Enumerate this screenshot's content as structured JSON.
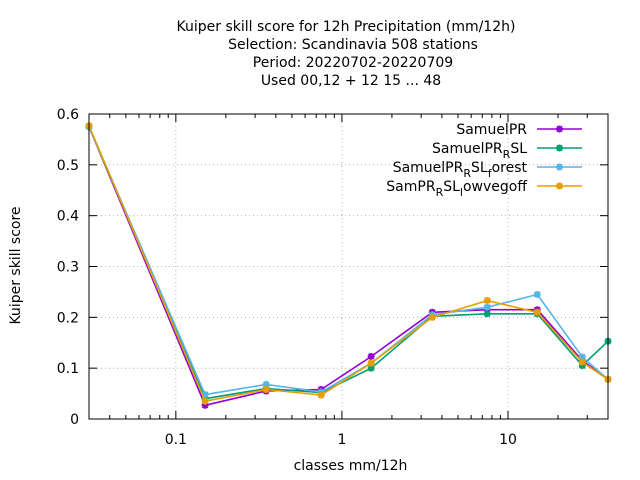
{
  "chart_data": {
    "type": "line",
    "title_lines": [
      "Kuiper skill score  for 12h Precipitation (mm/12h)",
      "Selection: Scandinavia    508 stations",
      "Period: 20220702-20220709",
      "Used  00,12  + 12 15 ... 48"
    ],
    "xlabel": "classes mm/12h",
    "ylabel": "Kuiper skill score",
    "x_scale": "log",
    "xlim": [
      0.03,
      40
    ],
    "ylim": [
      0,
      0.6
    ],
    "grid": true,
    "legend_position": "top-right",
    "x_ticks": [
      {
        "value": 0.1,
        "label": "0.1"
      },
      {
        "value": 1,
        "label": "1"
      },
      {
        "value": 10,
        "label": "10"
      }
    ],
    "y_ticks": [
      {
        "value": 0,
        "label": "0"
      },
      {
        "value": 0.1,
        "label": "0.1"
      },
      {
        "value": 0.2,
        "label": "0.2"
      },
      {
        "value": 0.3,
        "label": "0.3"
      },
      {
        "value": 0.4,
        "label": "0.4"
      },
      {
        "value": 0.5,
        "label": "0.5"
      },
      {
        "value": 0.6,
        "label": "0.6"
      }
    ],
    "x": [
      0.03,
      0.15,
      0.35,
      0.75,
      1.5,
      3.5,
      7.5,
      15,
      28,
      40
    ],
    "series": [
      {
        "name": "SamuelPR",
        "label_main": "SamuelPR",
        "label_sub": "",
        "label_tail": "",
        "color": "#9400d3",
        "values": [
          0.575,
          0.027,
          0.055,
          0.058,
          0.123,
          0.21,
          0.215,
          0.215,
          0.115,
          0.078
        ]
      },
      {
        "name": "SamuelPR_RSL",
        "label_main": "SamuelPR",
        "label_sub": "R",
        "label_tail": "SL",
        "color": "#009e73",
        "values": [
          0.575,
          0.04,
          0.06,
          0.052,
          0.1,
          0.202,
          0.207,
          0.207,
          0.105,
          0.153
        ]
      },
      {
        "name": "SamuelPR_RSL_forest",
        "label_main": "SamuelPR",
        "label_sub": "R",
        "label_tail": "SL",
        "label_sub2": "f",
        "label_tail2": "orest",
        "color": "#56b4e9",
        "values": [
          0.575,
          0.048,
          0.068,
          0.053,
          0.11,
          0.205,
          0.22,
          0.245,
          0.122,
          0.078
        ]
      },
      {
        "name": "SamPR_RSL_lowvegoff",
        "label_main": "SamPR",
        "label_sub": "R",
        "label_tail": "SL",
        "label_sub2": "l",
        "label_tail2": "owvegoff",
        "color": "#e69f00",
        "values": [
          0.577,
          0.035,
          0.058,
          0.047,
          0.11,
          0.2,
          0.233,
          0.21,
          0.112,
          0.078
        ]
      }
    ]
  }
}
